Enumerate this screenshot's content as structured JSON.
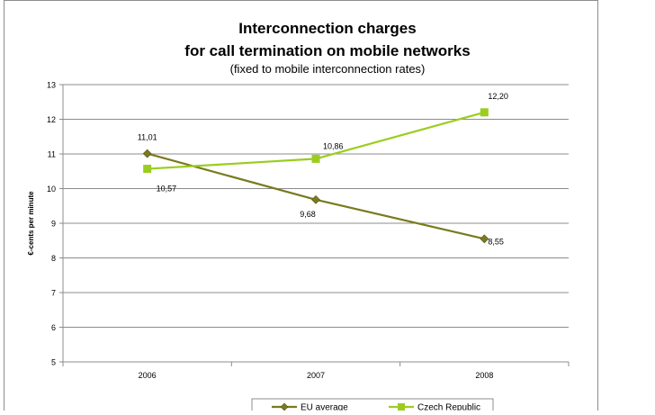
{
  "chart_data": {
    "type": "line",
    "title_line1": "Interconnection charges",
    "title_line2": "for call termination on mobile networks",
    "subtitle": "(fixed to mobile interconnection rates)",
    "ylabel": "€-cents per minute",
    "xlabel": "",
    "categories": [
      "2006",
      "2007",
      "2008"
    ],
    "ylim": [
      5,
      13
    ],
    "yticks": [
      "5",
      "6",
      "7",
      "8",
      "9",
      "10",
      "11",
      "12",
      "13"
    ],
    "grid": "horizontal",
    "legend_position": "bottom",
    "series": [
      {
        "name": "EU average",
        "values": [
          11.01,
          9.68,
          8.55
        ],
        "labels": [
          "11,01",
          "9,68",
          "8,55"
        ],
        "color": "#7a7a1e",
        "marker": "diamond"
      },
      {
        "name": "Czech Republic",
        "values": [
          10.57,
          10.86,
          12.2
        ],
        "labels": [
          "10,57",
          "10,86",
          "12,20"
        ],
        "color": "#9acd1e",
        "marker": "square"
      }
    ]
  }
}
